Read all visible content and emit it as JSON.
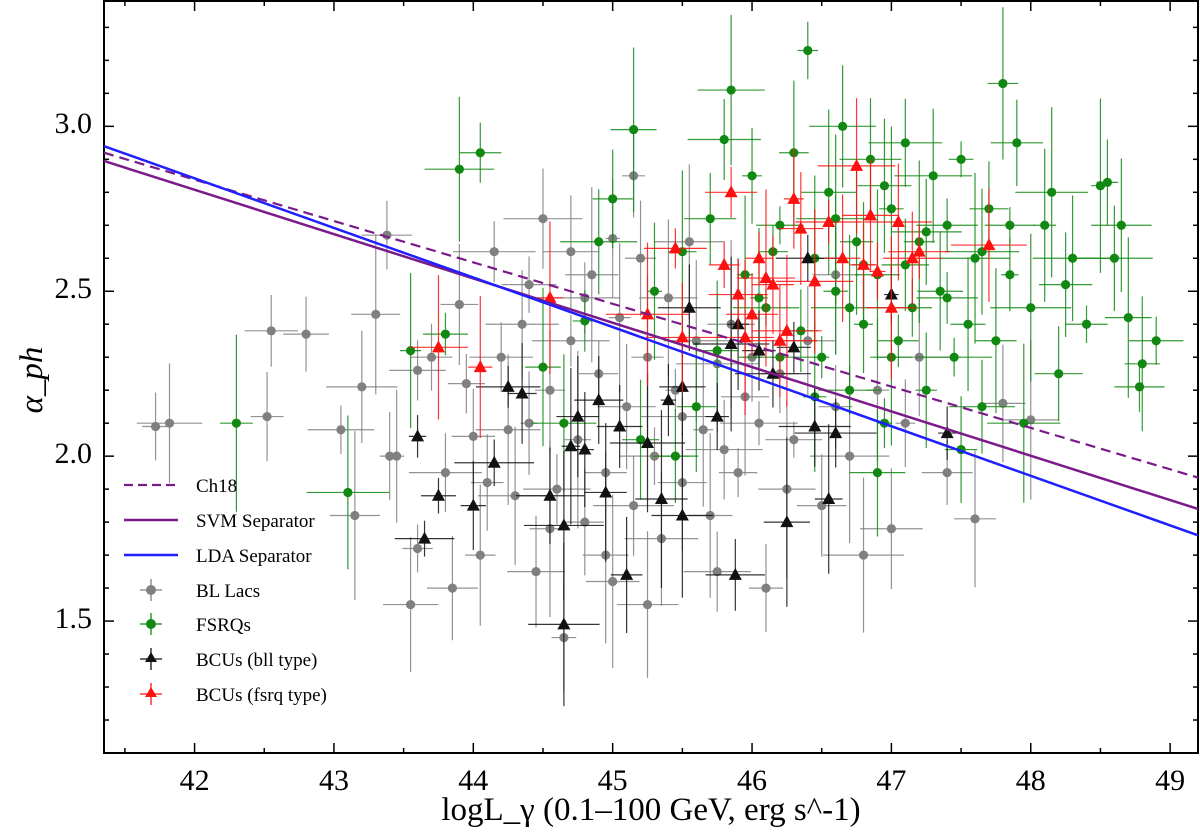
{
  "chart_data": {
    "type": "scatter",
    "title": "",
    "xlabel": "logL_γ (0.1–100 GeV, erg s^-1)",
    "ylabel": "α_ph",
    "xlim": [
      41.35,
      49.2
    ],
    "ylim": [
      1.1,
      3.38
    ],
    "grid": false,
    "legend_position": "lower-left",
    "x_ticks": [
      "42",
      "43",
      "44",
      "45",
      "46",
      "47",
      "48",
      "49"
    ],
    "y_ticks": [
      "1.5",
      "2.0",
      "2.5",
      "3.0"
    ],
    "lines": [
      {
        "name": "Ch18",
        "style": "dashed",
        "color": "#7b1a8a",
        "x": [
          41.35,
          49.2
        ],
        "y": [
          2.92,
          1.935
        ]
      },
      {
        "name": "SVM Separator",
        "style": "solid",
        "color": "#7b1a8a",
        "x": [
          41.35,
          49.2
        ],
        "y": [
          2.895,
          1.84
        ]
      },
      {
        "name": "LDA Separator",
        "style": "solid",
        "color": "#1f1fff",
        "x": [
          41.35,
          49.2
        ],
        "y": [
          2.94,
          1.76
        ]
      }
    ],
    "series": [
      {
        "name": "BL Lacs",
        "marker": "circle",
        "color": "#808080",
        "points": [
          [
            41.72,
            2.09
          ],
          [
            41.82,
            2.1
          ],
          [
            42.55,
            2.38
          ],
          [
            42.8,
            2.37
          ],
          [
            42.52,
            2.12
          ],
          [
            43.2,
            2.21
          ],
          [
            43.05,
            2.08
          ],
          [
            43.3,
            2.43
          ],
          [
            43.38,
            2.67
          ],
          [
            43.15,
            1.82
          ],
          [
            43.45,
            2.0
          ],
          [
            43.55,
            1.55
          ],
          [
            43.6,
            2.26
          ],
          [
            43.7,
            2.3
          ],
          [
            43.8,
            1.95
          ],
          [
            43.9,
            2.46
          ],
          [
            44.0,
            2.06
          ],
          [
            44.05,
            1.7
          ],
          [
            44.15,
            2.62
          ],
          [
            44.2,
            2.3
          ],
          [
            44.3,
            1.88
          ],
          [
            44.35,
            2.4
          ],
          [
            44.4,
            2.1
          ],
          [
            44.45,
            1.65
          ],
          [
            44.5,
            2.72
          ],
          [
            44.55,
            2.2
          ],
          [
            44.6,
            1.9
          ],
          [
            44.65,
            1.45
          ],
          [
            44.7,
            2.35
          ],
          [
            44.75,
            2.05
          ],
          [
            44.8,
            1.8
          ],
          [
            44.85,
            2.55
          ],
          [
            44.9,
            2.25
          ],
          [
            44.95,
            1.95
          ],
          [
            45.0,
            1.62
          ],
          [
            45.05,
            2.42
          ],
          [
            45.1,
            2.15
          ],
          [
            45.15,
            1.85
          ],
          [
            45.2,
            2.6
          ],
          [
            45.25,
            2.3
          ],
          [
            45.3,
            2.0
          ],
          [
            45.35,
            1.75
          ],
          [
            45.4,
            2.48
          ],
          [
            45.45,
            2.2
          ],
          [
            45.5,
            1.92
          ],
          [
            45.55,
            2.65
          ],
          [
            45.6,
            2.35
          ],
          [
            45.65,
            2.08
          ],
          [
            45.7,
            1.82
          ],
          [
            45.75,
            2.28
          ],
          [
            45.8,
            2.02
          ],
          [
            45.85,
            2.4
          ],
          [
            45.9,
            1.95
          ],
          [
            45.95,
            2.18
          ],
          [
            46.0,
            2.3
          ],
          [
            46.05,
            2.1
          ],
          [
            46.1,
            1.6
          ],
          [
            46.2,
            2.25
          ],
          [
            46.3,
            2.05
          ],
          [
            46.4,
            2.35
          ],
          [
            46.5,
            1.85
          ],
          [
            46.6,
            2.15
          ],
          [
            46.7,
            2.0
          ],
          [
            46.8,
            1.7
          ],
          [
            46.9,
            2.2
          ],
          [
            47.0,
            1.78
          ],
          [
            47.1,
            2.1
          ],
          [
            47.2,
            2.3
          ],
          [
            47.4,
            1.95
          ],
          [
            47.6,
            1.81
          ],
          [
            48.0,
            2.11
          ],
          [
            47.8,
            2.16
          ],
          [
            46.6,
            2.55
          ],
          [
            45.0,
            2.66
          ],
          [
            44.25,
            2.08
          ],
          [
            43.95,
            2.22
          ],
          [
            43.6,
            1.72
          ],
          [
            44.8,
            2.48
          ],
          [
            45.5,
            2.12
          ],
          [
            44.1,
            1.92
          ],
          [
            43.4,
            2.0
          ],
          [
            43.85,
            1.6
          ],
          [
            44.55,
            1.78
          ],
          [
            45.25,
            1.55
          ],
          [
            45.75,
            1.65
          ],
          [
            46.25,
            1.9
          ],
          [
            44.7,
            2.62
          ],
          [
            45.15,
            2.85
          ],
          [
            44.95,
            1.7
          ],
          [
            44.4,
            2.52
          ]
        ]
      },
      {
        "name": "FSRQs",
        "marker": "circle",
        "color": "#118811",
        "points": [
          [
            42.3,
            2.1
          ],
          [
            43.1,
            1.89
          ],
          [
            43.55,
            2.32
          ],
          [
            43.8,
            2.37
          ],
          [
            43.9,
            2.87
          ],
          [
            44.05,
            2.92
          ],
          [
            44.5,
            2.27
          ],
          [
            44.8,
            2.41
          ],
          [
            45.0,
            2.78
          ],
          [
            45.15,
            2.99
          ],
          [
            45.3,
            2.5
          ],
          [
            45.5,
            2.62
          ],
          [
            45.7,
            2.72
          ],
          [
            45.8,
            2.96
          ],
          [
            45.85,
            3.11
          ],
          [
            45.95,
            2.55
          ],
          [
            46.0,
            2.85
          ],
          [
            46.1,
            2.45
          ],
          [
            46.2,
            2.7
          ],
          [
            46.3,
            2.92
          ],
          [
            46.4,
            3.23
          ],
          [
            46.45,
            2.6
          ],
          [
            46.5,
            2.3
          ],
          [
            46.55,
            2.8
          ],
          [
            46.6,
            2.5
          ],
          [
            46.65,
            3.0
          ],
          [
            46.7,
            2.2
          ],
          [
            46.75,
            2.65
          ],
          [
            46.8,
            2.4
          ],
          [
            46.85,
            2.9
          ],
          [
            46.9,
            2.55
          ],
          [
            46.95,
            2.1
          ],
          [
            47.0,
            2.75
          ],
          [
            47.05,
            2.35
          ],
          [
            47.1,
            2.95
          ],
          [
            47.15,
            2.45
          ],
          [
            47.2,
            2.65
          ],
          [
            47.25,
            2.2
          ],
          [
            47.3,
            2.85
          ],
          [
            47.35,
            2.5
          ],
          [
            47.4,
            2.7
          ],
          [
            47.45,
            2.3
          ],
          [
            47.5,
            2.9
          ],
          [
            47.55,
            2.4
          ],
          [
            47.6,
            2.6
          ],
          [
            47.65,
            2.15
          ],
          [
            47.7,
            2.75
          ],
          [
            47.75,
            2.35
          ],
          [
            47.8,
            3.13
          ],
          [
            47.85,
            2.55
          ],
          [
            47.9,
            2.95
          ],
          [
            48.0,
            2.45
          ],
          [
            48.1,
            2.7
          ],
          [
            48.2,
            2.25
          ],
          [
            48.3,
            2.6
          ],
          [
            48.4,
            2.4
          ],
          [
            48.5,
            2.82
          ],
          [
            48.55,
            2.83
          ],
          [
            48.6,
            2.6
          ],
          [
            48.65,
            2.7
          ],
          [
            48.7,
            2.42
          ],
          [
            48.8,
            2.28
          ],
          [
            48.9,
            2.35
          ],
          [
            48.78,
            2.21
          ],
          [
            48.15,
            2.8
          ],
          [
            47.95,
            2.1
          ],
          [
            47.5,
            2.02
          ],
          [
            46.9,
            1.95
          ],
          [
            46.2,
            2.3
          ],
          [
            45.6,
            2.15
          ],
          [
            45.2,
            2.05
          ],
          [
            44.9,
            2.65
          ],
          [
            46.15,
            2.62
          ],
          [
            46.35,
            2.38
          ],
          [
            46.6,
            2.72
          ],
          [
            47.1,
            2.58
          ],
          [
            47.4,
            2.48
          ],
          [
            47.65,
            2.62
          ],
          [
            46.8,
            2.58
          ],
          [
            46.05,
            2.48
          ],
          [
            45.75,
            2.32
          ],
          [
            46.45,
            2.18
          ],
          [
            47.25,
            2.68
          ],
          [
            47.85,
            2.7
          ],
          [
            48.25,
            2.52
          ],
          [
            46.95,
            2.82
          ],
          [
            45.45,
            2.0
          ],
          [
            44.65,
            2.1
          ],
          [
            46.7,
            2.45
          ],
          [
            47.0,
            2.3
          ]
        ]
      },
      {
        "name": "BCUs (bll type)",
        "marker": "triangle",
        "color": "#111111",
        "points": [
          [
            43.6,
            2.06
          ],
          [
            43.65,
            1.75
          ],
          [
            43.75,
            1.88
          ],
          [
            44.0,
            1.85
          ],
          [
            44.15,
            1.98
          ],
          [
            44.25,
            2.21
          ],
          [
            44.35,
            2.19
          ],
          [
            44.55,
            1.88
          ],
          [
            44.65,
            1.79
          ],
          [
            44.7,
            2.03
          ],
          [
            44.75,
            2.12
          ],
          [
            44.8,
            2.02
          ],
          [
            44.65,
            1.49
          ],
          [
            44.95,
            1.89
          ],
          [
            45.05,
            2.09
          ],
          [
            45.1,
            1.64
          ],
          [
            45.25,
            2.04
          ],
          [
            45.35,
            1.87
          ],
          [
            45.4,
            2.17
          ],
          [
            45.5,
            2.21
          ],
          [
            45.55,
            2.45
          ],
          [
            45.75,
            2.12
          ],
          [
            45.85,
            2.34
          ],
          [
            45.9,
            2.4
          ],
          [
            45.88,
            1.64
          ],
          [
            46.05,
            2.32
          ],
          [
            46.15,
            2.25
          ],
          [
            46.25,
            1.8
          ],
          [
            46.3,
            2.33
          ],
          [
            46.4,
            2.6
          ],
          [
            46.45,
            2.09
          ],
          [
            46.55,
            1.87
          ],
          [
            46.6,
            2.07
          ],
          [
            47.0,
            2.49
          ],
          [
            47.4,
            2.07
          ],
          [
            45.5,
            1.82
          ],
          [
            44.9,
            2.17
          ]
        ]
      },
      {
        "name": "BCUs (fsrq type)",
        "marker": "triangle",
        "color": "#ff1010",
        "points": [
          [
            43.75,
            2.33
          ],
          [
            44.05,
            2.27
          ],
          [
            44.55,
            2.48
          ],
          [
            45.25,
            2.43
          ],
          [
            45.45,
            2.63
          ],
          [
            45.5,
            2.36
          ],
          [
            45.8,
            2.58
          ],
          [
            45.85,
            2.8
          ],
          [
            45.9,
            2.49
          ],
          [
            45.95,
            2.36
          ],
          [
            46.0,
            2.43
          ],
          [
            46.05,
            2.6
          ],
          [
            46.1,
            2.54
          ],
          [
            46.15,
            2.52
          ],
          [
            46.25,
            2.38
          ],
          [
            46.3,
            2.78
          ],
          [
            46.35,
            2.69
          ],
          [
            46.45,
            2.53
          ],
          [
            46.55,
            2.71
          ],
          [
            46.65,
            2.6
          ],
          [
            46.75,
            2.88
          ],
          [
            46.8,
            2.58
          ],
          [
            46.85,
            2.73
          ],
          [
            46.9,
            2.56
          ],
          [
            47.0,
            2.45
          ],
          [
            47.05,
            2.71
          ],
          [
            47.15,
            2.6
          ],
          [
            47.2,
            2.62
          ],
          [
            47.7,
            2.64
          ],
          [
            46.2,
            2.35
          ]
        ]
      }
    ]
  }
}
